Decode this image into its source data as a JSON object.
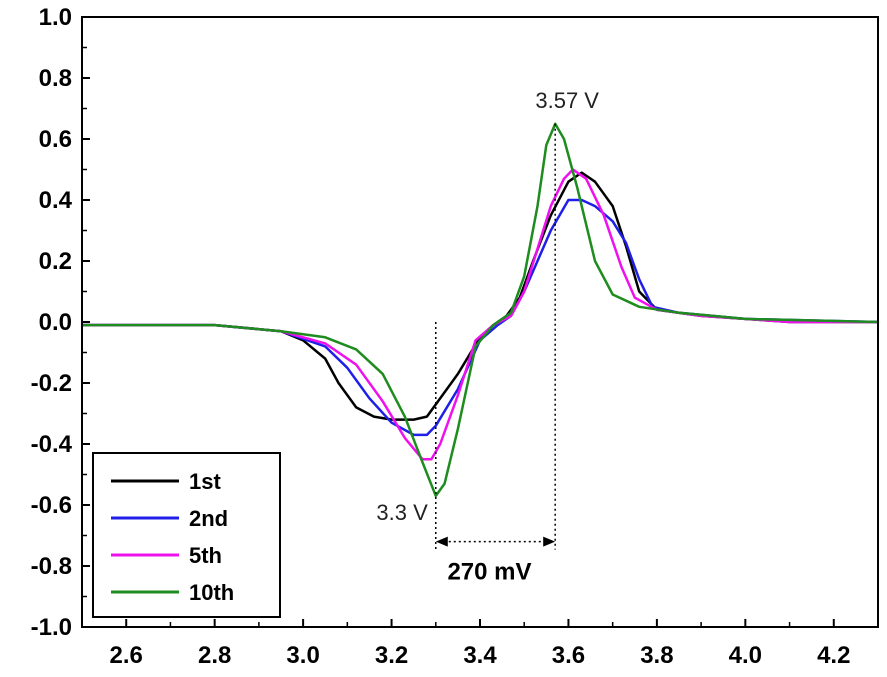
{
  "chart_data": {
    "type": "line",
    "title": "",
    "xlabel": "",
    "ylabel": "",
    "xlim": [
      2.5,
      4.3
    ],
    "ylim": [
      -1.0,
      1.0
    ],
    "x_ticks": [
      "2.6",
      "2.8",
      "3.0",
      "3.2",
      "3.4",
      "3.6",
      "3.8",
      "4.0",
      "4.2"
    ],
    "y_ticks": [
      "1.0",
      "0.8",
      "0.6",
      "0.4",
      "0.2",
      "0.0",
      "-0.2",
      "-0.4",
      "-0.6",
      "-0.8",
      "-1.0"
    ],
    "grid": false,
    "legend_position": "bottom-left",
    "series": [
      {
        "name": "1st",
        "color": "#000000",
        "points": [
          [
            2.5,
            -0.01
          ],
          [
            2.8,
            -0.01
          ],
          [
            2.95,
            -0.03
          ],
          [
            3.0,
            -0.06
          ],
          [
            3.05,
            -0.12
          ],
          [
            3.08,
            -0.2
          ],
          [
            3.12,
            -0.28
          ],
          [
            3.16,
            -0.31
          ],
          [
            3.2,
            -0.32
          ],
          [
            3.25,
            -0.32
          ],
          [
            3.28,
            -0.31
          ],
          [
            3.3,
            -0.27
          ],
          [
            3.35,
            -0.17
          ],
          [
            3.4,
            -0.05
          ],
          [
            3.43,
            -0.01
          ],
          [
            3.46,
            0.02
          ],
          [
            3.49,
            0.08
          ],
          [
            3.52,
            0.2
          ],
          [
            3.56,
            0.35
          ],
          [
            3.6,
            0.46
          ],
          [
            3.63,
            0.49
          ],
          [
            3.66,
            0.46
          ],
          [
            3.7,
            0.38
          ],
          [
            3.73,
            0.25
          ],
          [
            3.76,
            0.1
          ],
          [
            3.8,
            0.04
          ],
          [
            3.9,
            0.02
          ],
          [
            4.1,
            0.0
          ],
          [
            4.3,
            0.0
          ]
        ]
      },
      {
        "name": "2nd",
        "color": "#1f1fe8",
        "points": [
          [
            2.5,
            -0.01
          ],
          [
            2.8,
            -0.01
          ],
          [
            2.95,
            -0.03
          ],
          [
            3.05,
            -0.08
          ],
          [
            3.1,
            -0.15
          ],
          [
            3.15,
            -0.25
          ],
          [
            3.2,
            -0.33
          ],
          [
            3.25,
            -0.37
          ],
          [
            3.28,
            -0.37
          ],
          [
            3.3,
            -0.34
          ],
          [
            3.35,
            -0.22
          ],
          [
            3.4,
            -0.06
          ],
          [
            3.44,
            -0.01
          ],
          [
            3.47,
            0.02
          ],
          [
            3.5,
            0.1
          ],
          [
            3.53,
            0.2
          ],
          [
            3.56,
            0.3
          ],
          [
            3.6,
            0.4
          ],
          [
            3.63,
            0.4
          ],
          [
            3.66,
            0.38
          ],
          [
            3.7,
            0.33
          ],
          [
            3.73,
            0.26
          ],
          [
            3.76,
            0.14
          ],
          [
            3.79,
            0.05
          ],
          [
            3.85,
            0.03
          ],
          [
            4.0,
            0.01
          ],
          [
            4.3,
            0.0
          ]
        ]
      },
      {
        "name": "5th",
        "color": "#ee11ee",
        "points": [
          [
            2.5,
            -0.01
          ],
          [
            2.8,
            -0.01
          ],
          [
            2.95,
            -0.03
          ],
          [
            3.05,
            -0.07
          ],
          [
            3.12,
            -0.14
          ],
          [
            3.18,
            -0.26
          ],
          [
            3.23,
            -0.38
          ],
          [
            3.27,
            -0.45
          ],
          [
            3.29,
            -0.45
          ],
          [
            3.31,
            -0.4
          ],
          [
            3.35,
            -0.24
          ],
          [
            3.39,
            -0.06
          ],
          [
            3.43,
            -0.01
          ],
          [
            3.47,
            0.02
          ],
          [
            3.5,
            0.1
          ],
          [
            3.53,
            0.24
          ],
          [
            3.56,
            0.38
          ],
          [
            3.59,
            0.47
          ],
          [
            3.61,
            0.5
          ],
          [
            3.64,
            0.47
          ],
          [
            3.68,
            0.35
          ],
          [
            3.72,
            0.18
          ],
          [
            3.75,
            0.08
          ],
          [
            3.8,
            0.04
          ],
          [
            3.9,
            0.02
          ],
          [
            4.1,
            0.0
          ],
          [
            4.3,
            0.0
          ]
        ]
      },
      {
        "name": "10th",
        "color": "#1e8c1e",
        "points": [
          [
            2.5,
            -0.01
          ],
          [
            2.8,
            -0.01
          ],
          [
            2.95,
            -0.03
          ],
          [
            3.05,
            -0.05
          ],
          [
            3.12,
            -0.09
          ],
          [
            3.18,
            -0.17
          ],
          [
            3.23,
            -0.31
          ],
          [
            3.27,
            -0.46
          ],
          [
            3.3,
            -0.57
          ],
          [
            3.32,
            -0.53
          ],
          [
            3.35,
            -0.35
          ],
          [
            3.39,
            -0.08
          ],
          [
            3.43,
            -0.01
          ],
          [
            3.47,
            0.03
          ],
          [
            3.5,
            0.15
          ],
          [
            3.53,
            0.38
          ],
          [
            3.55,
            0.58
          ],
          [
            3.57,
            0.65
          ],
          [
            3.59,
            0.6
          ],
          [
            3.62,
            0.44
          ],
          [
            3.66,
            0.2
          ],
          [
            3.7,
            0.09
          ],
          [
            3.76,
            0.05
          ],
          [
            3.85,
            0.03
          ],
          [
            4.0,
            0.01
          ],
          [
            4.3,
            0.0
          ]
        ]
      }
    ],
    "annotations": [
      {
        "id": "peak-oxidation",
        "text": "3.57 V",
        "x": 3.57,
        "y": 0.65
      },
      {
        "id": "peak-reduction",
        "text": "3.3 V",
        "x": 3.3,
        "y": -0.57
      },
      {
        "id": "separation",
        "text": "270 mV",
        "x1": 3.3,
        "x2": 3.57,
        "y": -0.72
      }
    ]
  }
}
